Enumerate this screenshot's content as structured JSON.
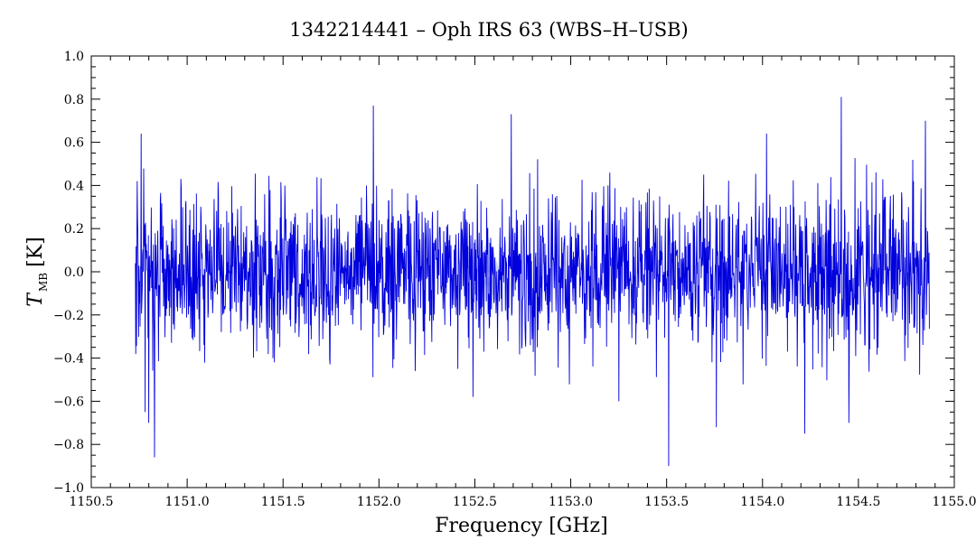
{
  "chart_data": {
    "type": "line",
    "title": "1342214441 – Oph IRS 63 (WBS–H–USB)",
    "xlabel": "Frequency [GHz]",
    "ylabel_main": "T",
    "ylabel_sub": "MB",
    "ylabel_unit": "[K]",
    "xlim": [
      1150.5,
      1155.0
    ],
    "ylim": [
      -1.0,
      1.0
    ],
    "x_ticks": [
      "1150.5",
      "1151.0",
      "1151.5",
      "1152.0",
      "1152.5",
      "1153.0",
      "1153.5",
      "1154.0",
      "1154.5",
      "1155.0"
    ],
    "y_ticks": [
      "−1.0",
      "−0.8",
      "−0.6",
      "−0.4",
      "−0.2",
      "0.0",
      "0.2",
      "0.4",
      "0.6",
      "0.8",
      "1.0"
    ],
    "x_tick_values": [
      1150.5,
      1151.0,
      1151.5,
      1152.0,
      1152.5,
      1153.0,
      1153.5,
      1154.0,
      1154.5,
      1155.0
    ],
    "y_tick_values": [
      -1.0,
      -0.8,
      -0.6,
      -0.4,
      -0.2,
      0.0,
      0.2,
      0.4,
      0.6,
      0.8,
      1.0
    ],
    "series": [
      {
        "color": "#0000dd",
        "x_range": [
          1150.73,
          1154.87
        ],
        "noise_rms_K": 0.17,
        "peaks": [
          {
            "x": 1150.74,
            "y": 0.42
          },
          {
            "x": 1150.76,
            "y": 0.64
          },
          {
            "x": 1150.78,
            "y": -0.65
          },
          {
            "x": 1150.8,
            "y": -0.7
          },
          {
            "x": 1150.83,
            "y": -0.86
          },
          {
            "x": 1151.97,
            "y": 0.77
          },
          {
            "x": 1152.49,
            "y": -0.58
          },
          {
            "x": 1152.69,
            "y": 0.73
          },
          {
            "x": 1153.25,
            "y": -0.6
          },
          {
            "x": 1153.51,
            "y": -0.9
          },
          {
            "x": 1153.76,
            "y": -0.72
          },
          {
            "x": 1154.02,
            "y": 0.64
          },
          {
            "x": 1154.22,
            "y": -0.75
          },
          {
            "x": 1154.41,
            "y": 0.81
          },
          {
            "x": 1154.45,
            "y": -0.7
          },
          {
            "x": 1154.85,
            "y": 0.7
          }
        ]
      }
    ],
    "grid": false,
    "watermark_icon": "wise-logo-icon"
  }
}
